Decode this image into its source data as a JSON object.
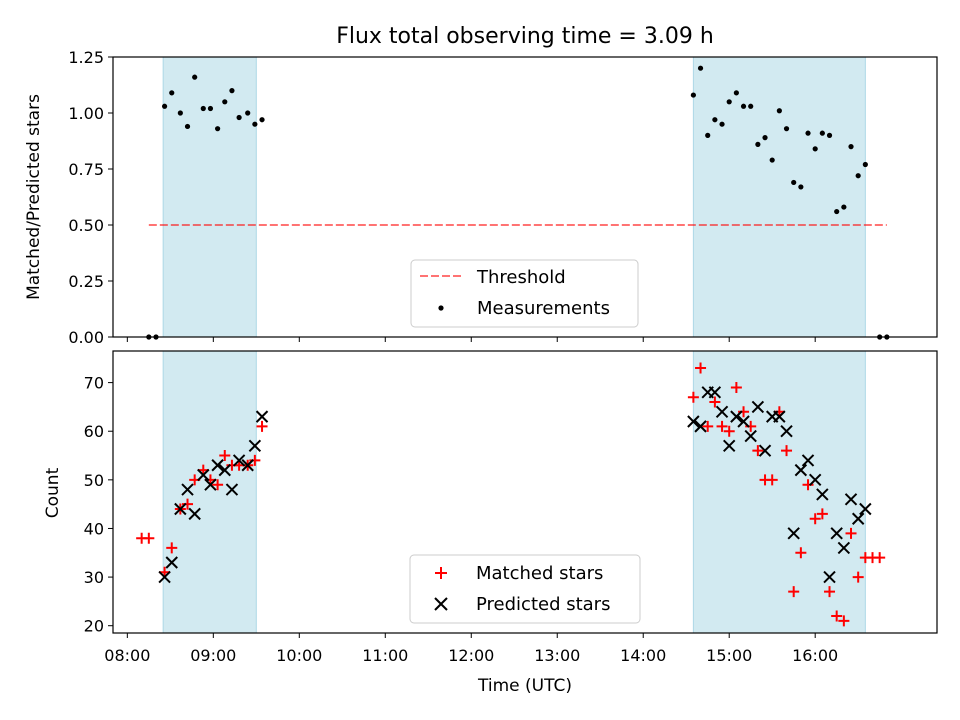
{
  "title": "Flux total observing time = 3.09 h",
  "xlabel": "Time (UTC)",
  "colors": {
    "band": "#add8e6",
    "threshold": "#ff0000",
    "matched": "#ff0000",
    "predicted": "#000000",
    "measurement": "#000000"
  },
  "chart_data": [
    {
      "type": "scatter",
      "ylabel": "Matched/Predicted stars",
      "ylim": [
        0,
        1.25
      ],
      "yticks": [
        "0.00",
        "0.25",
        "0.50",
        "0.75",
        "1.00",
        "1.25"
      ],
      "yticks_values": [
        0,
        0.25,
        0.5,
        0.75,
        1.0,
        1.25
      ],
      "shaded_intervals": [
        [
          "08:25",
          "09:30"
        ],
        [
          "14:35",
          "16:35"
        ]
      ],
      "threshold": {
        "name": "Threshold",
        "value": 0.5,
        "x_range": [
          "08:15",
          "16:50"
        ]
      },
      "legend": {
        "placement": "lower center",
        "entries": [
          "Threshold",
          "Measurements"
        ]
      },
      "series": [
        {
          "name": "Measurements",
          "points": [
            [
              "08:15",
              0
            ],
            [
              "08:20",
              0
            ],
            [
              "08:26",
              1.03
            ],
            [
              "08:31",
              1.09
            ],
            [
              "08:37",
              1.0
            ],
            [
              "08:42",
              0.94
            ],
            [
              "08:47",
              1.16
            ],
            [
              "08:53",
              1.02
            ],
            [
              "08:58",
              1.02
            ],
            [
              "09:03",
              0.93
            ],
            [
              "09:08",
              1.05
            ],
            [
              "09:13",
              1.1
            ],
            [
              "09:18",
              0.98
            ],
            [
              "09:24",
              1.0
            ],
            [
              "09:29",
              0.95
            ],
            [
              "09:34",
              0.97
            ],
            [
              "14:35",
              1.08
            ],
            [
              "14:40",
              1.2
            ],
            [
              "14:45",
              0.9
            ],
            [
              "14:50",
              0.97
            ],
            [
              "14:55",
              0.95
            ],
            [
              "15:00",
              1.05
            ],
            [
              "15:05",
              1.09
            ],
            [
              "15:10",
              1.03
            ],
            [
              "15:15",
              1.03
            ],
            [
              "15:20",
              0.86
            ],
            [
              "15:25",
              0.89
            ],
            [
              "15:30",
              0.79
            ],
            [
              "15:35",
              1.01
            ],
            [
              "15:40",
              0.93
            ],
            [
              "15:45",
              0.69
            ],
            [
              "15:50",
              0.67
            ],
            [
              "15:55",
              0.91
            ],
            [
              "16:00",
              0.84
            ],
            [
              "16:05",
              0.91
            ],
            [
              "16:10",
              0.9
            ],
            [
              "16:15",
              0.56
            ],
            [
              "16:20",
              0.58
            ],
            [
              "16:25",
              0.85
            ],
            [
              "16:30",
              0.72
            ],
            [
              "16:35",
              0.77
            ],
            [
              "16:45",
              0
            ],
            [
              "16:50",
              0
            ]
          ]
        }
      ]
    },
    {
      "type": "scatter",
      "ylabel": "Count",
      "ylim": [
        18.5,
        76.5
      ],
      "yticks": [
        "20",
        "30",
        "40",
        "50",
        "60",
        "70"
      ],
      "yticks_values": [
        20,
        30,
        40,
        50,
        60,
        70
      ],
      "xlim": [
        "07:50",
        "17:25"
      ],
      "xticks": [
        "08:00",
        "09:00",
        "10:00",
        "11:00",
        "12:00",
        "13:00",
        "14:00",
        "15:00",
        "16:00"
      ],
      "shaded_intervals": [
        [
          "08:25",
          "09:30"
        ],
        [
          "14:35",
          "16:35"
        ]
      ],
      "legend": {
        "placement": "lower center",
        "entries": [
          "Matched stars",
          "Predicted stars"
        ]
      },
      "series": [
        {
          "name": "Matched stars",
          "marker": "plus",
          "points": [
            [
              "08:10",
              38
            ],
            [
              "08:15",
              38
            ],
            [
              "08:26",
              31
            ],
            [
              "08:31",
              36
            ],
            [
              "08:37",
              44
            ],
            [
              "08:42",
              45
            ],
            [
              "08:47",
              50
            ],
            [
              "08:53",
              52
            ],
            [
              "08:58",
              50
            ],
            [
              "09:03",
              49
            ],
            [
              "09:08",
              55
            ],
            [
              "09:13",
              53
            ],
            [
              "09:18",
              53
            ],
            [
              "09:24",
              53
            ],
            [
              "09:29",
              54
            ],
            [
              "09:34",
              61
            ],
            [
              "14:35",
              67
            ],
            [
              "14:40",
              73
            ],
            [
              "14:45",
              61
            ],
            [
              "14:50",
              66
            ],
            [
              "14:55",
              61
            ],
            [
              "15:00",
              60
            ],
            [
              "15:05",
              69
            ],
            [
              "15:10",
              64
            ],
            [
              "15:15",
              61
            ],
            [
              "15:20",
              56
            ],
            [
              "15:25",
              50
            ],
            [
              "15:30",
              50
            ],
            [
              "15:35",
              64
            ],
            [
              "15:40",
              56
            ],
            [
              "15:45",
              27
            ],
            [
              "15:50",
              35
            ],
            [
              "15:55",
              49
            ],
            [
              "16:00",
              42
            ],
            [
              "16:05",
              43
            ],
            [
              "16:10",
              27
            ],
            [
              "16:15",
              22
            ],
            [
              "16:20",
              21
            ],
            [
              "16:25",
              39
            ],
            [
              "16:30",
              30
            ],
            [
              "16:35",
              34
            ],
            [
              "16:40",
              34
            ],
            [
              "16:45",
              34
            ]
          ]
        },
        {
          "name": "Predicted stars",
          "marker": "x",
          "points": [
            [
              "08:26",
              30
            ],
            [
              "08:31",
              33
            ],
            [
              "08:37",
              44
            ],
            [
              "08:42",
              48
            ],
            [
              "08:47",
              43
            ],
            [
              "08:53",
              51
            ],
            [
              "08:58",
              49
            ],
            [
              "09:03",
              53
            ],
            [
              "09:08",
              52
            ],
            [
              "09:13",
              48
            ],
            [
              "09:18",
              54
            ],
            [
              "09:24",
              53
            ],
            [
              "09:29",
              57
            ],
            [
              "09:34",
              63
            ],
            [
              "14:35",
              62
            ],
            [
              "14:40",
              61
            ],
            [
              "14:45",
              68
            ],
            [
              "14:50",
              68
            ],
            [
              "14:55",
              64
            ],
            [
              "15:00",
              57
            ],
            [
              "15:05",
              63
            ],
            [
              "15:10",
              62
            ],
            [
              "15:15",
              59
            ],
            [
              "15:20",
              65
            ],
            [
              "15:25",
              56
            ],
            [
              "15:30",
              63
            ],
            [
              "15:35",
              63
            ],
            [
              "15:40",
              60
            ],
            [
              "15:45",
              39
            ],
            [
              "15:50",
              52
            ],
            [
              "15:55",
              54
            ],
            [
              "16:00",
              50
            ],
            [
              "16:05",
              47
            ],
            [
              "16:10",
              30
            ],
            [
              "16:15",
              39
            ],
            [
              "16:20",
              36
            ],
            [
              "16:25",
              46
            ],
            [
              "16:30",
              42
            ],
            [
              "16:35",
              44
            ]
          ]
        }
      ]
    }
  ]
}
